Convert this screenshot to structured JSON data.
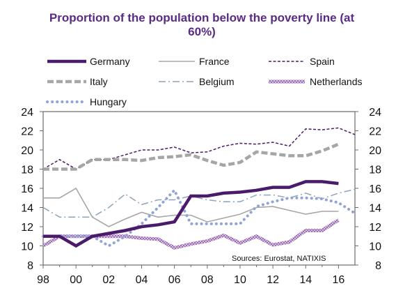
{
  "chart_data": {
    "type": "line",
    "title": "Proportion of the population below the poverty line (at 60%)",
    "x_tick_labels": [
      "98",
      "00",
      "02",
      "04",
      "06",
      "08",
      "10",
      "12",
      "14",
      "16"
    ],
    "y_tick_labels": [
      "8",
      "10",
      "12",
      "14",
      "16",
      "18",
      "20",
      "22",
      "24"
    ],
    "xlim": [
      1998,
      2017
    ],
    "ylim": [
      8,
      24
    ],
    "grid": false,
    "legend_position": "top",
    "source_note": "Sources: Eurostat, NATIXIS",
    "series": [
      {
        "name": "Germany",
        "color": "#4b1b6b",
        "style": "solid-thick",
        "points": [
          [
            1998,
            11.0
          ],
          [
            1999,
            11.0
          ],
          [
            2000,
            10.0
          ],
          [
            2001,
            11.0
          ],
          [
            2002,
            11.3
          ],
          [
            2003,
            11.6
          ],
          [
            2004,
            12.0
          ],
          [
            2005,
            12.2
          ],
          [
            2006,
            12.5
          ],
          [
            2007,
            15.2
          ],
          [
            2008,
            15.2
          ],
          [
            2009,
            15.5
          ],
          [
            2010,
            15.6
          ],
          [
            2011,
            15.8
          ],
          [
            2012,
            16.1
          ],
          [
            2013,
            16.1
          ],
          [
            2014,
            16.7
          ],
          [
            2015,
            16.7
          ],
          [
            2016,
            16.5
          ]
        ]
      },
      {
        "name": "France",
        "color": "#a6a6a6",
        "style": "solid-thin",
        "points": [
          [
            1998,
            15.0
          ],
          [
            1999,
            15.0
          ],
          [
            2000,
            16.0
          ],
          [
            2001,
            13.0
          ],
          [
            2002,
            12.0
          ],
          [
            2003,
            12.8
          ],
          [
            2004,
            13.5
          ],
          [
            2005,
            13.0
          ],
          [
            2006,
            13.2
          ],
          [
            2007,
            13.2
          ],
          [
            2008,
            12.5
          ],
          [
            2009,
            12.9
          ],
          [
            2010,
            13.3
          ],
          [
            2011,
            14.0
          ],
          [
            2012,
            14.1
          ],
          [
            2013,
            13.7
          ],
          [
            2014,
            13.3
          ],
          [
            2015,
            13.6
          ],
          [
            2016,
            13.6
          ]
        ]
      },
      {
        "name": "Spain",
        "color": "#4b1b6b",
        "style": "dashed-thin",
        "points": [
          [
            1998,
            18.0
          ],
          [
            1999,
            19.0
          ],
          [
            2000,
            18.0
          ],
          [
            2001,
            19.0
          ],
          [
            2002,
            19.0
          ],
          [
            2003,
            19.5
          ],
          [
            2004,
            20.0
          ],
          [
            2005,
            20.0
          ],
          [
            2006,
            20.3
          ],
          [
            2007,
            19.7
          ],
          [
            2008,
            19.8
          ],
          [
            2009,
            20.4
          ],
          [
            2010,
            20.7
          ],
          [
            2011,
            20.6
          ],
          [
            2012,
            20.8
          ],
          [
            2013,
            20.4
          ],
          [
            2014,
            22.2
          ],
          [
            2015,
            22.1
          ],
          [
            2016,
            22.3
          ],
          [
            2017,
            21.6
          ]
        ]
      },
      {
        "name": "Italy",
        "color": "#a6a6a6",
        "style": "dashed-thick",
        "points": [
          [
            1998,
            18.0
          ],
          [
            1999,
            18.0
          ],
          [
            2000,
            18.0
          ],
          [
            2001,
            19.0
          ],
          [
            2002,
            19.0
          ],
          [
            2003,
            19.0
          ],
          [
            2004,
            18.9
          ],
          [
            2005,
            19.2
          ],
          [
            2006,
            19.3
          ],
          [
            2007,
            19.5
          ],
          [
            2008,
            18.9
          ],
          [
            2009,
            18.4
          ],
          [
            2010,
            18.7
          ],
          [
            2011,
            19.8
          ],
          [
            2012,
            19.6
          ],
          [
            2013,
            19.4
          ],
          [
            2014,
            19.4
          ],
          [
            2015,
            19.9
          ],
          [
            2016,
            20.6
          ]
        ]
      },
      {
        "name": "Belgium",
        "color": "#8fa3b8",
        "style": "dash-dot",
        "points": [
          [
            1998,
            14.0
          ],
          [
            1999,
            13.0
          ],
          [
            2000,
            13.0
          ],
          [
            2001,
            13.0
          ],
          [
            2002,
            14.0
          ],
          [
            2003,
            15.4
          ],
          [
            2004,
            14.3
          ],
          [
            2005,
            14.8
          ],
          [
            2006,
            14.8
          ],
          [
            2007,
            15.2
          ],
          [
            2008,
            14.8
          ],
          [
            2009,
            14.6
          ],
          [
            2010,
            14.6
          ],
          [
            2011,
            15.3
          ],
          [
            2012,
            15.3
          ],
          [
            2013,
            15.0
          ],
          [
            2014,
            15.5
          ],
          [
            2015,
            14.9
          ],
          [
            2016,
            15.5
          ],
          [
            2017,
            15.9
          ]
        ]
      },
      {
        "name": "Netherlands",
        "color": "#b98cc9",
        "style": "hatched",
        "points": [
          [
            1998,
            10.0
          ],
          [
            1999,
            11.0
          ],
          [
            2000,
            11.0
          ],
          [
            2001,
            11.0
          ],
          [
            2002,
            11.0
          ],
          [
            2003,
            11.0
          ],
          [
            2004,
            10.8
          ],
          [
            2005,
            10.7
          ],
          [
            2006,
            9.8
          ],
          [
            2007,
            10.2
          ],
          [
            2008,
            10.5
          ],
          [
            2009,
            11.1
          ],
          [
            2010,
            10.3
          ],
          [
            2011,
            11.0
          ],
          [
            2012,
            10.1
          ],
          [
            2013,
            10.4
          ],
          [
            2014,
            11.6
          ],
          [
            2015,
            11.6
          ],
          [
            2016,
            12.7
          ]
        ]
      },
      {
        "name": "Hungary",
        "color": "#8fa3d9",
        "style": "dotted-thick",
        "points": [
          [
            1998,
            11.0
          ],
          [
            1999,
            11.0
          ],
          [
            2000,
            11.0
          ],
          [
            2001,
            11.0
          ],
          [
            2002,
            10.0
          ],
          [
            2003,
            11.0
          ],
          [
            2004,
            12.3
          ],
          [
            2005,
            14.0
          ],
          [
            2006,
            15.8
          ],
          [
            2007,
            12.3
          ],
          [
            2008,
            12.3
          ],
          [
            2009,
            12.3
          ],
          [
            2010,
            12.3
          ],
          [
            2011,
            14.1
          ],
          [
            2012,
            14.6
          ],
          [
            2013,
            15.0
          ],
          [
            2014,
            15.0
          ],
          [
            2015,
            14.9
          ],
          [
            2016,
            14.5
          ],
          [
            2017,
            13.4
          ]
        ]
      }
    ]
  }
}
